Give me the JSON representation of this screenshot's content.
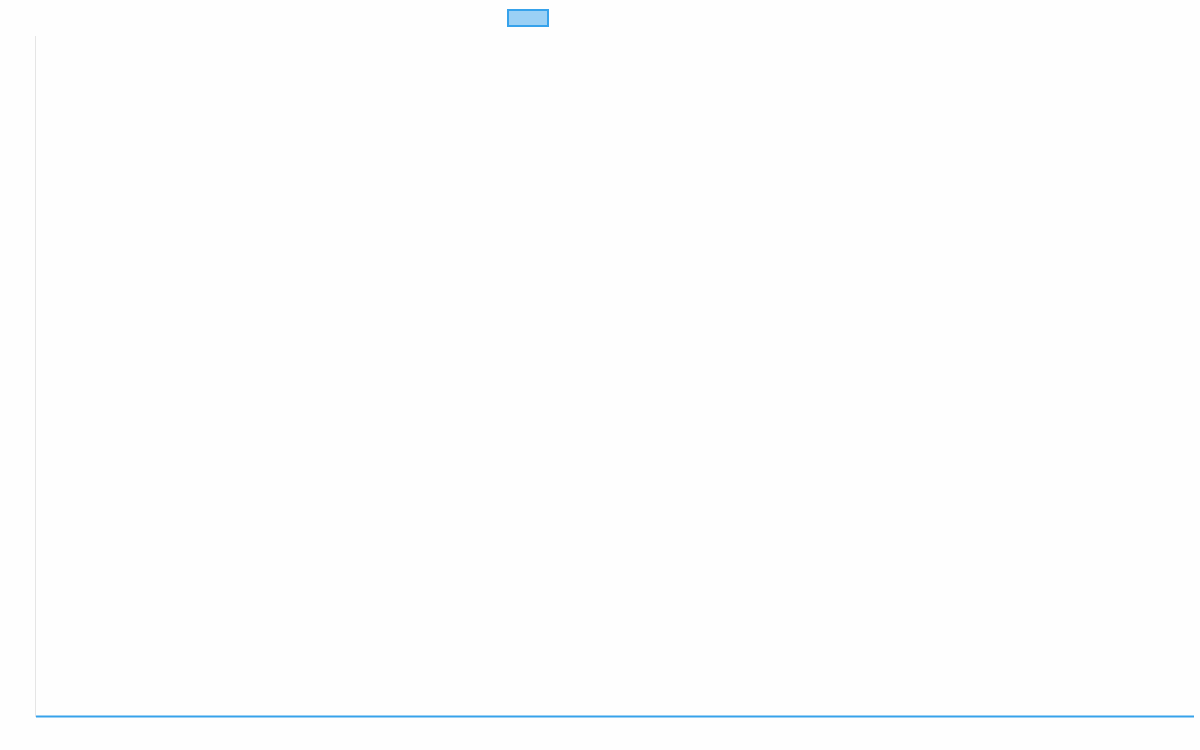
{
  "chart_data": {
    "type": "line",
    "title": "",
    "xlabel": "",
    "ylabel": "",
    "legend": {
      "placement": "top",
      "entries": [
        {
          "name": "",
          "fill": "#9ad0f5",
          "stroke": "#36a2eb"
        }
      ]
    },
    "series": [
      {
        "values": [],
        "color": "#36a2eb"
      }
    ],
    "grid": false,
    "colors": {
      "axis": "#e5e5e5",
      "series": "#36a2eb",
      "legend_fill": "#9ad0f5"
    }
  }
}
